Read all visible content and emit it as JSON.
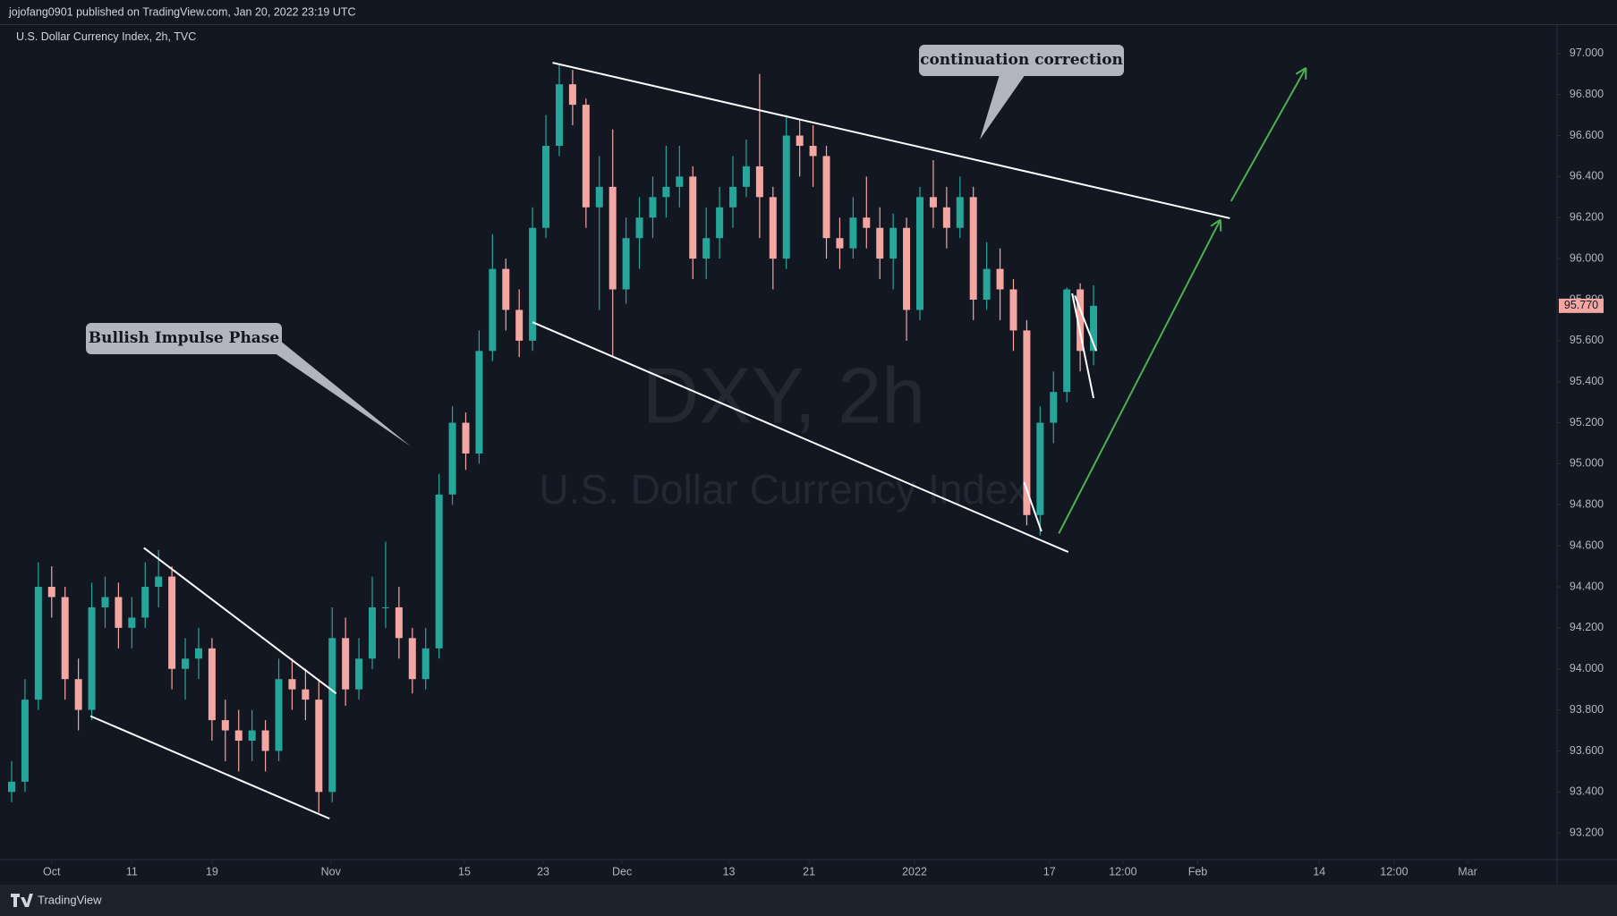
{
  "header": {
    "publisher": "jojofang0901 published on TradingView.com, Jan 20, 2022 23:19 UTC",
    "symbol": "U.S. Dollar Currency Index, 2h, TVC",
    "footer": "TradingView"
  },
  "chart_data": {
    "type": "candlestick",
    "watermark": "DXY, 2h",
    "watermark_subtitle": "U.S. Dollar Currency Index",
    "annotations": [
      "Bullish Impulse Phase",
      "continuation correction"
    ],
    "up_color": "#26a69a",
    "down_color": "#f4a6a3",
    "x": [
      -3,
      -2,
      -1,
      0,
      1,
      2,
      3,
      4,
      5,
      6,
      7,
      8,
      9,
      10,
      11,
      12,
      13,
      14,
      15,
      16,
      17,
      18,
      19,
      20,
      21,
      22,
      23,
      24,
      25,
      26,
      27,
      28,
      29,
      30,
      31,
      32,
      33,
      34,
      35,
      36,
      37,
      38,
      39,
      40,
      41,
      42,
      43,
      44,
      45,
      46,
      47,
      48,
      49,
      50,
      51,
      52,
      53,
      54,
      55,
      56,
      57,
      58,
      59,
      60,
      61,
      62,
      63,
      64,
      65,
      66,
      67,
      68,
      69,
      70,
      71,
      72,
      73,
      74,
      75,
      76,
      77,
      78
    ],
    "open": [
      93.4,
      93.45,
      93.85,
      94.4,
      94.35,
      93.95,
      93.8,
      94.3,
      94.35,
      94.2,
      94.25,
      94.4,
      94.45,
      94.0,
      94.05,
      94.1,
      93.75,
      93.7,
      93.65,
      93.7,
      93.6,
      93.95,
      93.9,
      93.85,
      93.4,
      94.15,
      93.9,
      94.05,
      94.3,
      94.3,
      94.15,
      93.95,
      94.1,
      94.85,
      95.2,
      95.05,
      95.55,
      95.95,
      95.75,
      95.6,
      96.15,
      96.55,
      96.85,
      96.75,
      96.25,
      96.35,
      95.85,
      96.1,
      96.2,
      96.3,
      96.35,
      96.4,
      96.0,
      96.1,
      96.25,
      96.35,
      96.45,
      96.3,
      96.0,
      96.6,
      96.55,
      96.5,
      96.1,
      96.05,
      96.2,
      96.15,
      96.0,
      96.15,
      95.75,
      96.3,
      96.25,
      96.15,
      96.3,
      95.8,
      95.95,
      95.85,
      95.65,
      94.75,
      95.2,
      95.35,
      95.85,
      95.55
    ],
    "high": [
      93.55,
      93.95,
      94.52,
      94.5,
      94.4,
      94.05,
      94.42,
      94.45,
      94.42,
      94.35,
      94.52,
      94.58,
      94.5,
      94.15,
      94.2,
      94.15,
      93.85,
      93.8,
      93.8,
      93.75,
      94.05,
      94.05,
      94.0,
      93.95,
      94.3,
      94.25,
      94.15,
      94.45,
      94.62,
      94.4,
      94.2,
      94.2,
      94.95,
      95.28,
      95.25,
      95.65,
      96.12,
      96.0,
      95.85,
      96.25,
      96.7,
      96.95,
      96.92,
      96.78,
      96.5,
      96.63,
      96.2,
      96.3,
      96.4,
      96.55,
      96.55,
      96.45,
      96.25,
      96.35,
      96.5,
      96.58,
      96.9,
      96.35,
      96.7,
      96.68,
      96.65,
      96.55,
      96.2,
      96.3,
      96.4,
      96.25,
      96.22,
      96.2,
      96.35,
      96.48,
      96.35,
      96.4,
      96.35,
      96.08,
      96.05,
      95.9,
      95.7,
      95.28,
      95.45,
      95.86,
      95.88,
      95.87
    ],
    "low": [
      93.35,
      93.4,
      93.8,
      94.25,
      93.85,
      93.7,
      93.75,
      94.2,
      94.1,
      94.1,
      94.2,
      94.3,
      93.9,
      93.85,
      93.95,
      93.65,
      93.55,
      93.5,
      93.55,
      93.5,
      93.55,
      93.8,
      93.75,
      93.3,
      93.35,
      93.82,
      93.85,
      94.0,
      94.2,
      94.05,
      93.88,
      93.9,
      94.05,
      94.8,
      94.97,
      95.0,
      95.5,
      95.65,
      95.52,
      95.55,
      96.1,
      96.5,
      96.65,
      96.15,
      95.75,
      95.52,
      95.78,
      95.95,
      96.1,
      96.2,
      96.25,
      95.9,
      95.9,
      96.0,
      96.15,
      96.3,
      96.1,
      95.85,
      95.95,
      96.4,
      96.35,
      96.0,
      95.95,
      96.0,
      96.05,
      95.9,
      95.85,
      95.6,
      95.7,
      96.15,
      96.05,
      96.1,
      95.7,
      95.75,
      95.7,
      95.55,
      94.7,
      94.65,
      95.1,
      95.3,
      95.45,
      95.48
    ],
    "close": [
      93.45,
      93.85,
      94.4,
      94.35,
      93.95,
      93.8,
      94.3,
      94.35,
      94.2,
      94.25,
      94.4,
      94.45,
      94.0,
      94.05,
      94.1,
      93.75,
      93.7,
      93.65,
      93.7,
      93.6,
      93.95,
      93.9,
      93.85,
      93.4,
      94.15,
      93.9,
      94.05,
      94.3,
      94.3,
      94.15,
      93.95,
      94.1,
      94.85,
      95.2,
      95.05,
      95.55,
      95.95,
      95.75,
      95.6,
      96.15,
      96.55,
      96.85,
      96.75,
      96.25,
      96.35,
      95.85,
      96.1,
      96.2,
      96.3,
      96.35,
      96.4,
      96.0,
      96.1,
      96.25,
      96.35,
      96.45,
      96.3,
      96.0,
      96.6,
      96.55,
      96.5,
      96.1,
      96.05,
      96.2,
      96.15,
      96.0,
      96.15,
      95.75,
      96.3,
      96.25,
      96.15,
      96.3,
      95.8,
      95.95,
      95.85,
      95.65,
      94.75,
      95.2,
      95.35,
      95.85,
      95.55,
      95.77
    ],
    "last_price": {
      "value": 95.77,
      "label": "95.770"
    },
    "xlim": [
      -3.1,
      112.7
    ],
    "xticks": [
      {
        "value": 0,
        "label": "Oct"
      },
      {
        "value": 6,
        "label": "11"
      },
      {
        "value": 12,
        "label": "19"
      },
      {
        "value": 20.9,
        "label": "Nov"
      },
      {
        "value": 30.9,
        "label": "15"
      },
      {
        "value": 36.8,
        "label": "23"
      },
      {
        "value": 42.7,
        "label": "Dec"
      },
      {
        "value": 50.7,
        "label": "13"
      },
      {
        "value": 56.7,
        "label": "21"
      },
      {
        "value": 64.6,
        "label": "2022"
      },
      {
        "value": 74.7,
        "label": "17"
      },
      {
        "value": 80.2,
        "label": "12:00"
      },
      {
        "value": 85.8,
        "label": "Feb"
      },
      {
        "value": 94.9,
        "label": "14"
      },
      {
        "value": 100.5,
        "label": "12:00"
      },
      {
        "value": 106,
        "label": "Mar"
      }
    ],
    "ylim": [
      93.07,
      97.14
    ],
    "yticks": [
      {
        "value": 93.2,
        "label": "93.200"
      },
      {
        "value": 93.4,
        "label": "93.400"
      },
      {
        "value": 93.6,
        "label": "93.600"
      },
      {
        "value": 93.8,
        "label": "93.800"
      },
      {
        "value": 94.0,
        "label": "94.000"
      },
      {
        "value": 94.2,
        "label": "94.200"
      },
      {
        "value": 94.4,
        "label": "94.400"
      },
      {
        "value": 94.6,
        "label": "94.600"
      },
      {
        "value": 94.8,
        "label": "94.800"
      },
      {
        "value": 95.0,
        "label": "95.000"
      },
      {
        "value": 95.2,
        "label": "95.200"
      },
      {
        "value": 95.4,
        "label": "95.400"
      },
      {
        "value": 95.6,
        "label": "95.600"
      },
      {
        "value": 95.8,
        "label": "95.800"
      },
      {
        "value": 96.0,
        "label": "96.000"
      },
      {
        "value": 96.2,
        "label": "96.200"
      },
      {
        "value": 96.4,
        "label": "96.400"
      },
      {
        "value": 96.6,
        "label": "96.600"
      },
      {
        "value": 96.8,
        "label": "96.800"
      },
      {
        "value": 97.0,
        "label": "97.000"
      }
    ],
    "trendlines": {
      "color": "#ffffff",
      "lines": [
        {
          "x": [
            37.5,
            88.2
          ],
          "y": [
            96.955,
            96.197
          ]
        },
        {
          "x": [
            36.0,
            76.1
          ],
          "y": [
            95.69,
            94.57
          ]
        },
        {
          "x": [
            6.9,
            21.3
          ],
          "y": [
            94.59,
            93.88
          ]
        },
        {
          "x": [
            2.9,
            20.8
          ],
          "y": [
            93.77,
            93.27
          ]
        },
        {
          "x": [
            72.8,
            74.1
          ],
          "y": [
            94.91,
            94.67
          ]
        },
        {
          "x": [
            76.4,
            78.0
          ],
          "y": [
            95.83,
            95.32
          ]
        },
        {
          "x": [
            76.6,
            78.2
          ],
          "y": [
            95.82,
            95.55
          ]
        }
      ]
    },
    "arrows": {
      "color": "#4caf50",
      "lines": [
        {
          "x": [
            75.4,
            87.5
          ],
          "y": [
            94.66,
            96.19
          ]
        },
        {
          "x": [
            88.3,
            93.9
          ],
          "y": [
            96.28,
            96.93
          ]
        }
      ]
    }
  }
}
